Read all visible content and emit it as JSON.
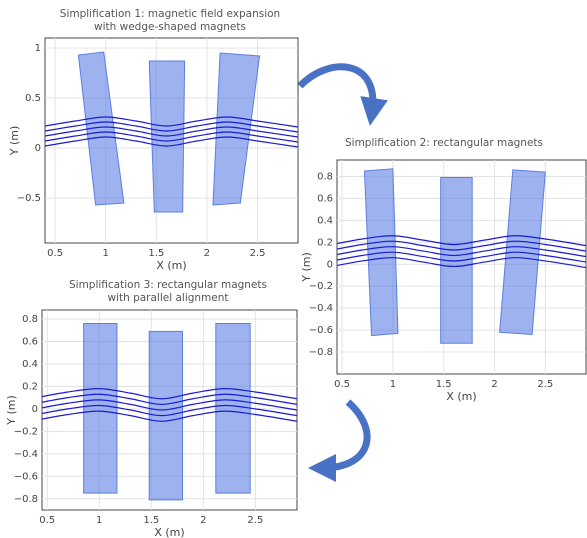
{
  "chart_data": [
    {
      "type": "line",
      "title": [
        "Simplification 1: magnetic field expansion",
        "with wedge-shaped magnets"
      ],
      "x_label": "X (m)",
      "y_label": "Y (m)",
      "xlim": [
        0.4,
        2.9
      ],
      "ylim": [
        -0.95,
        1.1
      ],
      "xticks": [
        0.5,
        1,
        1.5,
        2,
        2.5
      ],
      "yticks": [
        {
          "value": -0.5,
          "label": "−0.5"
        },
        0,
        0.5,
        1
      ],
      "grid": true,
      "line_color": "#1a1ad6",
      "magnet_color": "#5b7fe3",
      "x": [
        0.4,
        0.7,
        1.0,
        1.3,
        1.6,
        1.9,
        2.2,
        2.5,
        2.9
      ],
      "series": [
        {
          "values": [
            0.02,
            0.07,
            0.11,
            0.07,
            0.02,
            0.07,
            0.11,
            0.07,
            0.01
          ]
        },
        {
          "values": [
            0.07,
            0.12,
            0.16,
            0.12,
            0.07,
            0.12,
            0.16,
            0.12,
            0.06
          ]
        },
        {
          "values": [
            0.12,
            0.17,
            0.21,
            0.17,
            0.12,
            0.17,
            0.21,
            0.17,
            0.11
          ]
        },
        {
          "values": [
            0.17,
            0.22,
            0.26,
            0.22,
            0.17,
            0.22,
            0.26,
            0.22,
            0.16
          ]
        },
        {
          "values": [
            0.22,
            0.27,
            0.31,
            0.27,
            0.22,
            0.27,
            0.31,
            0.27,
            0.21
          ]
        }
      ],
      "magnets": [
        {
          "x": [
            0.73,
            0.98,
            1.18,
            0.9
          ],
          "y": [
            0.93,
            0.96,
            -0.55,
            -0.57
          ]
        },
        {
          "x": [
            1.43,
            1.78,
            1.76,
            1.48
          ],
          "y": [
            0.87,
            0.87,
            -0.64,
            -0.64
          ]
        },
        {
          "x": [
            2.13,
            2.52,
            2.33,
            2.06
          ],
          "y": [
            0.95,
            0.92,
            -0.55,
            -0.57
          ]
        }
      ]
    },
    {
      "type": "line",
      "title": [
        "Simplification 2: rectangular magnets"
      ],
      "x_label": "X (m)",
      "y_label": "Y (m)",
      "xlim": [
        0.45,
        2.9
      ],
      "ylim": [
        -1.0,
        0.95
      ],
      "xticks": [
        0.5,
        1,
        1.5,
        2,
        2.5
      ],
      "yticks": [
        {
          "value": -0.8,
          "label": "−0.8"
        },
        {
          "value": -0.6,
          "label": "−0.6"
        },
        {
          "value": -0.4,
          "label": "−0.4"
        },
        {
          "value": -0.2,
          "label": "−0.2"
        },
        0,
        0.2,
        0.4,
        0.6,
        0.8
      ],
      "grid": true,
      "line_color": "#1a1ad6",
      "magnet_color": "#5b7fe3",
      "x": [
        0.4,
        0.7,
        1.0,
        1.3,
        1.6,
        1.9,
        2.2,
        2.5,
        2.9
      ],
      "series": [
        {
          "values": [
            -0.02,
            0.03,
            0.06,
            0.02,
            -0.02,
            0.02,
            0.06,
            0.03,
            -0.03
          ]
        },
        {
          "values": [
            0.03,
            0.08,
            0.11,
            0.07,
            0.03,
            0.07,
            0.11,
            0.08,
            0.02
          ]
        },
        {
          "values": [
            0.08,
            0.13,
            0.16,
            0.12,
            0.08,
            0.12,
            0.16,
            0.13,
            0.07
          ]
        },
        {
          "values": [
            0.13,
            0.18,
            0.21,
            0.17,
            0.13,
            0.17,
            0.21,
            0.18,
            0.12
          ]
        },
        {
          "values": [
            0.18,
            0.23,
            0.26,
            0.22,
            0.18,
            0.22,
            0.26,
            0.23,
            0.17
          ]
        }
      ],
      "magnets": [
        {
          "x": [
            0.72,
            1.0,
            1.05,
            0.79
          ],
          "y": [
            0.85,
            0.87,
            -0.63,
            -0.65
          ]
        },
        {
          "x": [
            1.47,
            1.78,
            1.78,
            1.47
          ],
          "y": [
            0.79,
            0.79,
            -0.72,
            -0.72
          ]
        },
        {
          "x": [
            2.18,
            2.5,
            2.37,
            2.05
          ],
          "y": [
            0.86,
            0.84,
            -0.64,
            -0.62
          ]
        }
      ]
    },
    {
      "type": "line",
      "title": [
        "Simplification 3: rectangular magnets",
        "with parallel alignment"
      ],
      "x_label": "X (m)",
      "y_label": "Y (m)",
      "xlim": [
        0.45,
        2.9
      ],
      "ylim": [
        -0.9,
        0.88
      ],
      "xticks": [
        0.5,
        1,
        1.5,
        2,
        2.5
      ],
      "yticks": [
        {
          "value": -0.8,
          "label": "−0.8"
        },
        {
          "value": -0.6,
          "label": "−0.6"
        },
        {
          "value": -0.4,
          "label": "−0.4"
        },
        {
          "value": -0.2,
          "label": "−0.2"
        },
        0,
        0.2,
        0.4,
        0.6,
        0.8
      ],
      "grid": true,
      "line_color": "#1a1ad6",
      "magnet_color": "#5b7fe3",
      "x": [
        0.4,
        0.7,
        1.0,
        1.3,
        1.6,
        1.9,
        2.2,
        2.5,
        2.9
      ],
      "series": [
        {
          "values": [
            -0.1,
            -0.05,
            -0.02,
            -0.06,
            -0.11,
            -0.06,
            -0.02,
            -0.05,
            -0.11
          ]
        },
        {
          "values": [
            -0.05,
            0.0,
            0.03,
            -0.01,
            -0.06,
            -0.01,
            0.03,
            0.0,
            -0.06
          ]
        },
        {
          "values": [
            0.0,
            0.05,
            0.08,
            0.04,
            -0.01,
            0.04,
            0.08,
            0.05,
            -0.01
          ]
        },
        {
          "values": [
            0.05,
            0.1,
            0.13,
            0.09,
            0.04,
            0.09,
            0.13,
            0.1,
            0.04
          ]
        },
        {
          "values": [
            0.1,
            0.15,
            0.18,
            0.14,
            0.09,
            0.14,
            0.18,
            0.15,
            0.09
          ]
        }
      ],
      "magnets": [
        {
          "x": [
            0.85,
            1.17,
            1.17,
            0.85
          ],
          "y": [
            0.76,
            0.76,
            -0.75,
            -0.75
          ]
        },
        {
          "x": [
            1.48,
            1.8,
            1.8,
            1.48
          ],
          "y": [
            0.69,
            0.69,
            -0.81,
            -0.81
          ]
        },
        {
          "x": [
            2.12,
            2.45,
            2.45,
            2.12
          ],
          "y": [
            0.76,
            0.76,
            -0.75,
            -0.75
          ]
        }
      ]
    }
  ]
}
